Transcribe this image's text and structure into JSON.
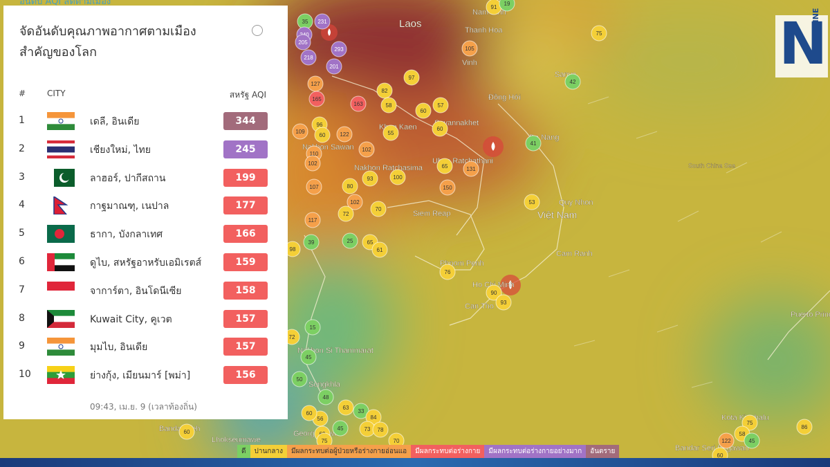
{
  "cropped_heading": "อันดับ AQI สดตามเมือง",
  "logo": {
    "letter": "N",
    "word": "ONLINE"
  },
  "panel": {
    "title_lines": [
      "จัดอันดับคุณภาพอากาศตามเมือง",
      "สำคัญของโลก"
    ],
    "columns": {
      "rank": "#",
      "city": "CITY",
      "aqi": "สหรัฐ AQI"
    },
    "rows": [
      {
        "rank": 1,
        "city": "เดลี, อินเดีย",
        "aqi": 344
      },
      {
        "rank": 2,
        "city": "เชียงใหม่, ไทย",
        "aqi": 245
      },
      {
        "rank": 3,
        "city": "ลาฮอร์, ปากีสถาน",
        "aqi": 199
      },
      {
        "rank": 4,
        "city": "กาฐมาณฑุ, เนปาล",
        "aqi": 177
      },
      {
        "rank": 5,
        "city": "ธากา, บังกลาเทศ",
        "aqi": 166
      },
      {
        "rank": 6,
        "city": "ดูไบ, สหรัฐอาหรับเอมิเรตส์",
        "aqi": 159
      },
      {
        "rank": 7,
        "city": "จาการ์ตา, อินโดนีเซีย",
        "aqi": 158
      },
      {
        "rank": 8,
        "city": "Kuwait City, คูเวต",
        "aqi": 157
      },
      {
        "rank": 9,
        "city": "มุมไบ, อินเดีย",
        "aqi": 157
      },
      {
        "rank": 10,
        "city": "ย่างกุ้ง, เมียนมาร์ [พม่า]",
        "aqi": 156
      }
    ],
    "updated": "09:43, เม.ย. 9 (เวลาท้องถิ่น)"
  },
  "map": {
    "places": [
      "Laos",
      "Nam Dinh",
      "Thanh Hoa",
      "Vinh",
      "Đồng Hới",
      "Savannakhet",
      "Khon Kaen",
      "Nakhon Sawan",
      "Nakhon Ratchasima",
      "Ubon Ratchathani",
      "Da Nang",
      "Siem Reap",
      "Việt Nam",
      "Quy Nhon",
      "Phnom Penh",
      "Ho Chi Minh",
      "Can Tho",
      "Cam Ranh",
      "Nakhon Si Thammarat",
      "Songkhla",
      "George Town",
      "Banda Aceh",
      "Lhokseumawe",
      "Kota Kinabalu",
      "Bandar Seri Begawan",
      "Puerto Princesa",
      "Sanya",
      "South China Sea"
    ],
    "markers": [
      35,
      231,
      240,
      205,
      218,
      293,
      201,
      91,
      19,
      75,
      105,
      97,
      82,
      127,
      165,
      163,
      58,
      57,
      60,
      96,
      109,
      60,
      122,
      55,
      60,
      102,
      110,
      102,
      65,
      131,
      41,
      42,
      93,
      100,
      150,
      80,
      107,
      102,
      72,
      70,
      117,
      53,
      25,
      65,
      61,
      39,
      98,
      76,
      90,
      93,
      72,
      15,
      45,
      50,
      48,
      63,
      33,
      56,
      60,
      84,
      73,
      78,
      69,
      45,
      75,
      70,
      60,
      75,
      86,
      58,
      45,
      122,
      60
    ]
  },
  "legend": [
    "ดี",
    "ปานกลาง",
    "มีผลกระทบต่อผู้ป่วยหรือร่างกายอ่อนแอ",
    "มีผลกระทบต่อร่างกาย",
    "มีผลกระทบต่อร่างกายอย่างมาก",
    "อันตราย"
  ]
}
